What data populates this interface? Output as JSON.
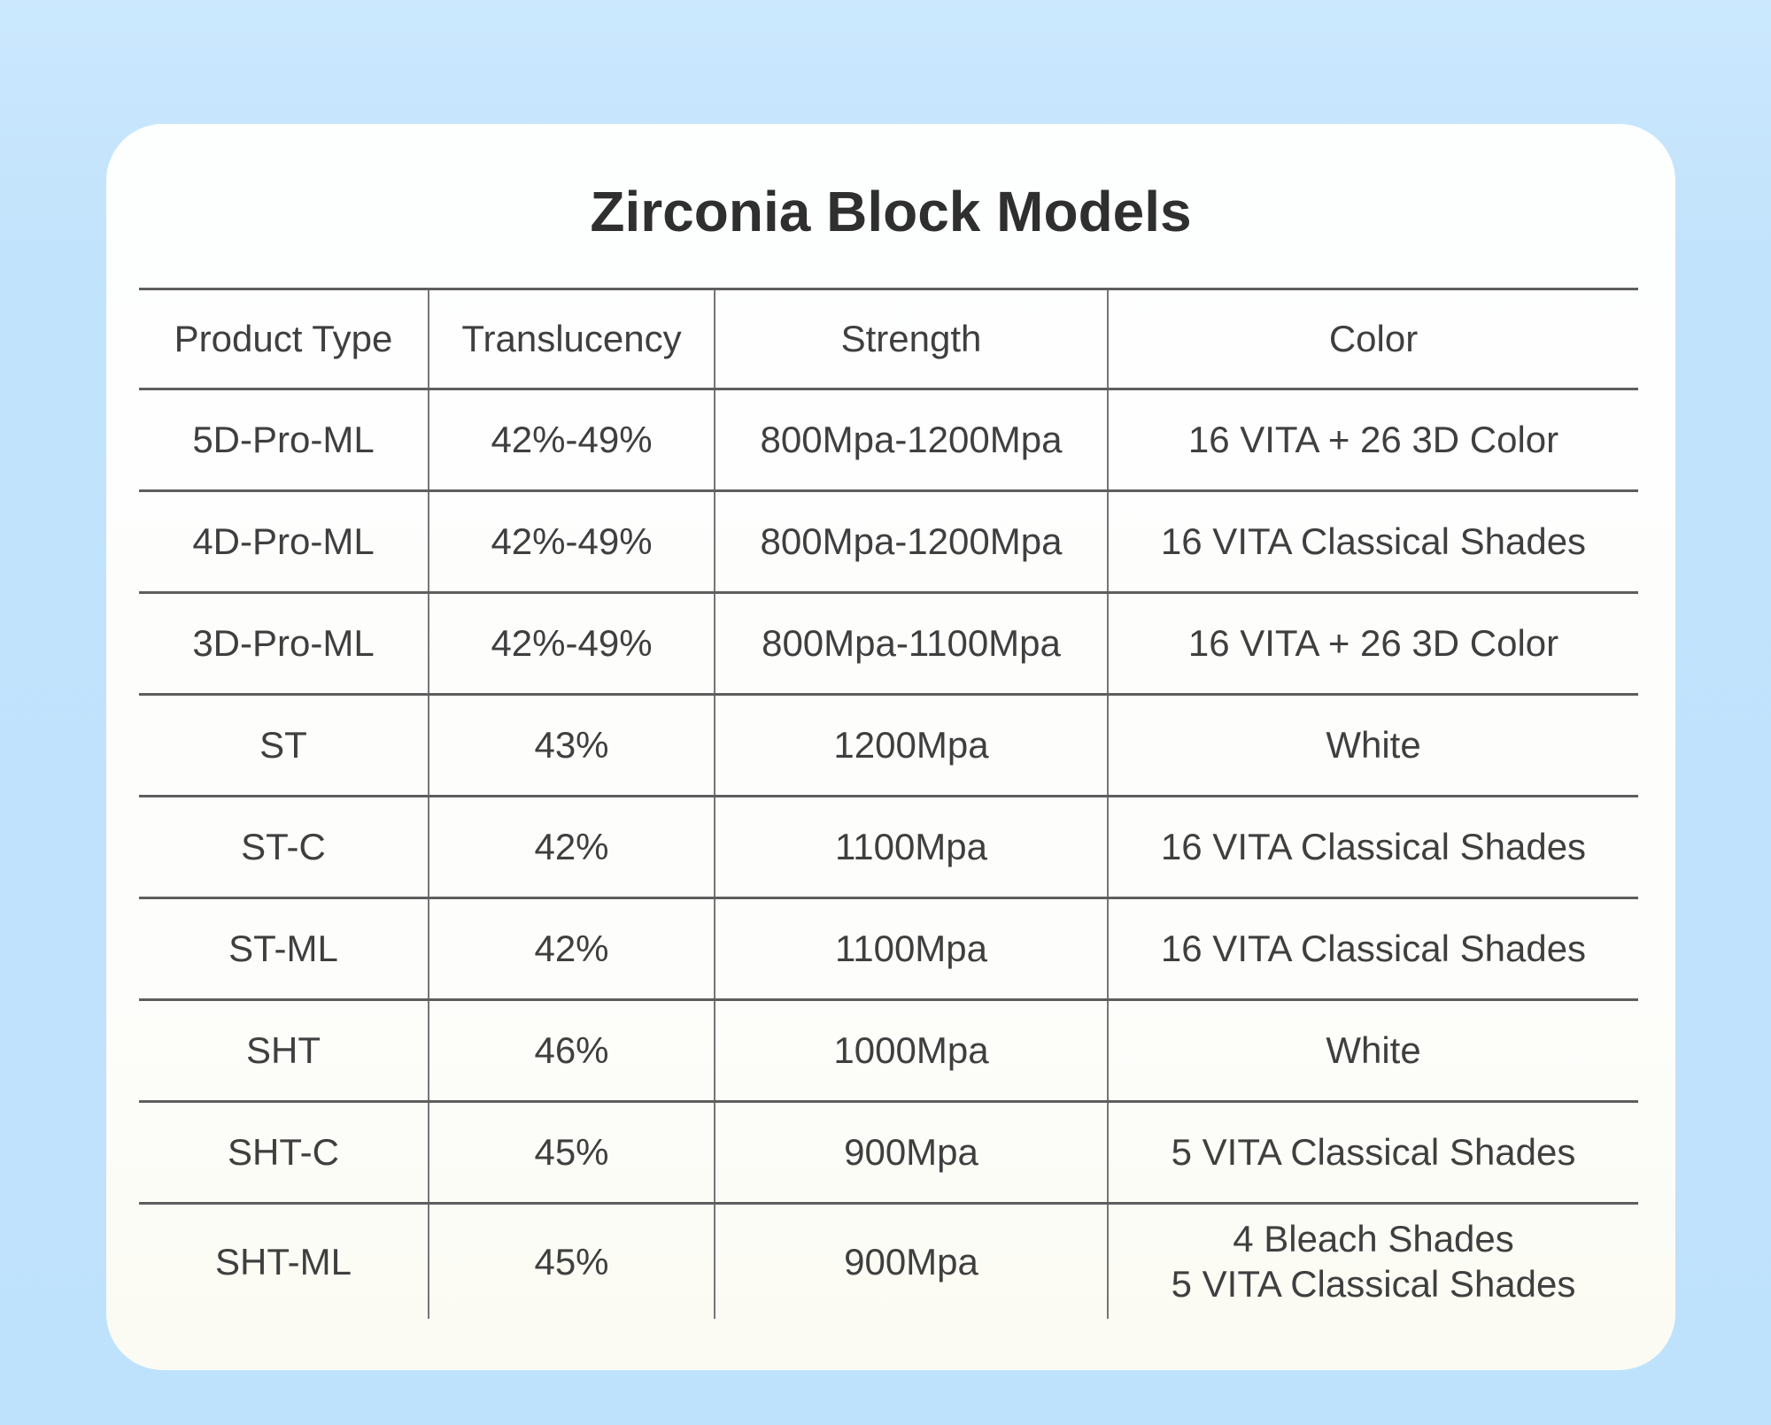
{
  "colors": {
    "page_background": "#c2e3fc",
    "card_background": "#fdfdfb",
    "rule_horizontal": "#5e5e5e",
    "rule_vertical": "#757575",
    "title_text": "#2f2f2f",
    "cell_text": "#3f3f3f"
  },
  "title": "Zirconia Block Models",
  "table": {
    "headers": [
      "Product Type",
      "Translucency",
      "Strength",
      "Color"
    ],
    "rows": [
      {
        "product_type": "5D-Pro-ML",
        "translucency": "42%-49%",
        "strength": "800Mpa-1200Mpa",
        "color": "16 VITA + 26 3D Color"
      },
      {
        "product_type": "4D-Pro-ML",
        "translucency": "42%-49%",
        "strength": "800Mpa-1200Mpa",
        "color": "16 VITA Classical Shades"
      },
      {
        "product_type": "3D-Pro-ML",
        "translucency": "42%-49%",
        "strength": "800Mpa-1100Mpa",
        "color": "16 VITA + 26 3D Color"
      },
      {
        "product_type": "ST",
        "translucency": "43%",
        "strength": "1200Mpa",
        "color": "White"
      },
      {
        "product_type": "ST-C",
        "translucency": "42%",
        "strength": "1100Mpa",
        "color": "16 VITA Classical Shades"
      },
      {
        "product_type": "ST-ML",
        "translucency": "42%",
        "strength": "1100Mpa",
        "color": "16 VITA Classical Shades"
      },
      {
        "product_type": "SHT",
        "translucency": "46%",
        "strength": "1000Mpa",
        "color": "White"
      },
      {
        "product_type": "SHT-C",
        "translucency": "45%",
        "strength": "900Mpa",
        "color": "5 VITA Classical Shades"
      },
      {
        "product_type": "SHT-ML",
        "translucency": "45%",
        "strength": "900Mpa",
        "color": "4 Bleach Shades\n5 VITA Classical Shades"
      }
    ]
  },
  "chart_data": {
    "type": "table",
    "title": "Zirconia Block Models",
    "columns": [
      "Product Type",
      "Translucency",
      "Strength",
      "Color"
    ],
    "rows": [
      [
        "5D-Pro-ML",
        "42%-49%",
        "800Mpa-1200Mpa",
        "16 VITA + 26 3D Color"
      ],
      [
        "4D-Pro-ML",
        "42%-49%",
        "800Mpa-1200Mpa",
        "16 VITA Classical Shades"
      ],
      [
        "3D-Pro-ML",
        "42%-49%",
        "800Mpa-1100Mpa",
        "16 VITA + 26 3D Color"
      ],
      [
        "ST",
        "43%",
        "1200Mpa",
        "White"
      ],
      [
        "ST-C",
        "42%",
        "1100Mpa",
        "16 VITA Classical Shades"
      ],
      [
        "ST-ML",
        "42%",
        "1100Mpa",
        "16 VITA Classical Shades"
      ],
      [
        "SHT",
        "46%",
        "1000Mpa",
        "White"
      ],
      [
        "SHT-C",
        "45%",
        "900Mpa",
        "5 VITA Classical Shades"
      ],
      [
        "SHT-ML",
        "45%",
        "900Mpa",
        "4 Bleach Shades / 5 VITA Classical Shades"
      ]
    ]
  }
}
